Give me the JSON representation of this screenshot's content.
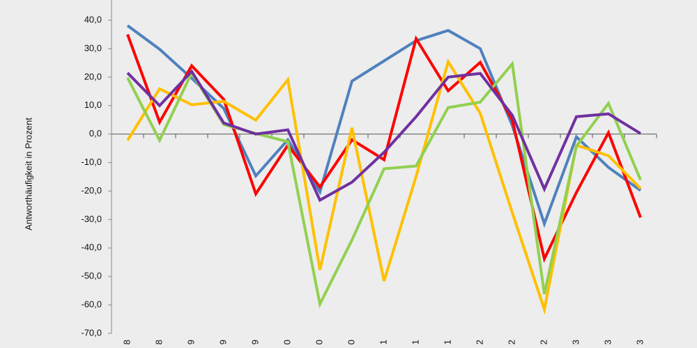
{
  "chart_data": {
    "type": "line",
    "y_axis_label": "Antworthäufigkeit in Prozent",
    "categories": [
      "8",
      "8",
      "9",
      "9",
      "9",
      "0",
      "0",
      "0",
      "1",
      "1",
      "1",
      "2",
      "2",
      "2",
      "3",
      "3",
      "3"
    ],
    "series": [
      {
        "color": "#4f81bd",
        "values": [
          38.1,
          29.8,
          19.6,
          9,
          -14.7,
          -2,
          -20.3,
          18.6,
          25.7,
          32.8,
          36.4,
          30,
          3,
          -31.5,
          -1,
          -11.7,
          -19.8
        ]
      },
      {
        "color": "#ff0000",
        "values": [
          35,
          4.2,
          24,
          12.2,
          -21,
          -3.9,
          -18.6,
          -2,
          -9,
          33.5,
          15.2,
          25.2,
          4.9,
          -43.8,
          -20.5,
          0.5,
          -29.3
        ]
      },
      {
        "color": "#ffc000",
        "values": [
          -2.2,
          15.9,
          10.3,
          11.5,
          4.9,
          19.1,
          -47.7,
          2.2,
          -51.6,
          -14.9,
          25.4,
          7.3,
          -27.6,
          -61.6,
          -3.9,
          -7.6,
          -19.1
        ]
      },
      {
        "color": "#92d050",
        "values": [
          19.8,
          -2.2,
          21.5,
          3.4,
          0.2,
          -2.7,
          -59.7,
          -37.2,
          -12.2,
          -11.2,
          9.3,
          11.2,
          24.7,
          -56.2,
          -4.2,
          10.8,
          -16.1
        ]
      },
      {
        "color": "#7030a0",
        "values": [
          21.5,
          10,
          22,
          3.9,
          0,
          1.5,
          -23.2,
          -16.9,
          -6.4,
          6.1,
          20,
          21.3,
          6.6,
          -19.3,
          6.1,
          7.1,
          0.2
        ]
      }
    ],
    "ylim": [
      -70,
      40
    ],
    "yticks": [
      {
        "value": -70,
        "label": "-70,0"
      },
      {
        "value": -60,
        "label": "-60,0"
      },
      {
        "value": -50,
        "label": "-50,0"
      },
      {
        "value": -40,
        "label": "-40,0"
      },
      {
        "value": -30,
        "label": "-30,0"
      },
      {
        "value": -20,
        "label": "-20,0"
      },
      {
        "value": -10,
        "label": "-10,0"
      },
      {
        "value": 0,
        "label": "0,0"
      },
      {
        "value": 10,
        "label": "10,0"
      },
      {
        "value": 20,
        "label": "20,0"
      },
      {
        "value": 30,
        "label": "30,0"
      },
      {
        "value": 40,
        "label": "40,0"
      }
    ],
    "grid": false
  }
}
